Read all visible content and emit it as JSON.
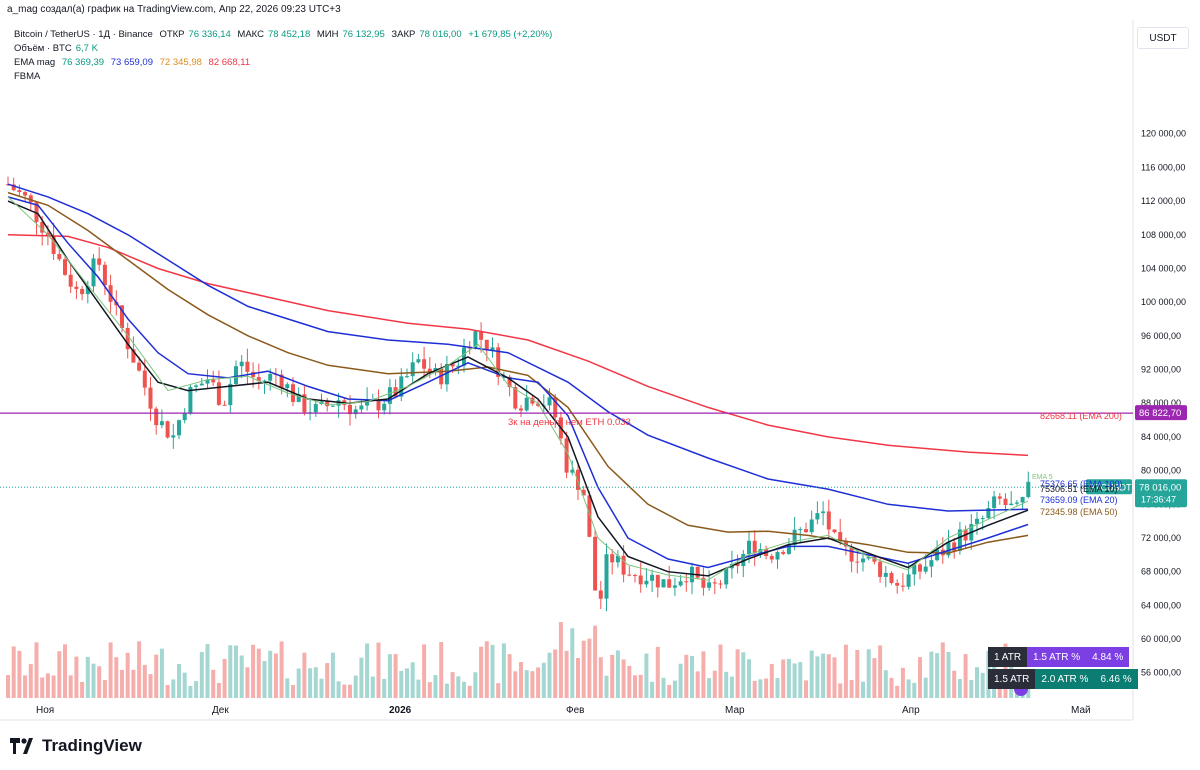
{
  "header": {
    "author_line": "a_mag создал(а) график на TradingView.com, Апр 22, 2026 09:23 UTC+3",
    "symbol": "Bitcoin / TetherUS · 1Д · Binance",
    "open_label": "ОТКР",
    "open": "76 336,14",
    "high_label": "МАКС",
    "high": "78 452,18",
    "low_label": "МИН",
    "low": "76 132,95",
    "close_label": "ЗАКР",
    "close": "78 016,00",
    "change": "+1 679,85 (+2,20%)",
    "volume_label": "Объём · BTC",
    "volume": "6,7 K",
    "ema_label": "EMA mag",
    "ema_vals": [
      "76 369,39",
      "73 659,09",
      "72 345,98",
      "82 668,11"
    ],
    "fbma_label": "FBMA",
    "currency_button": "USDT"
  },
  "colors": {
    "up": "#26a69a",
    "down": "#ef5350",
    "ema10": "#131722",
    "ema20": "#1e2fd6",
    "ema50": "#8b5a1b",
    "ema200": "#f23645",
    "ema5": "#7cc47c",
    "level": "#9c27b0"
  },
  "chart_data": {
    "type": "candlestick",
    "symbol": "BTCUSDT",
    "timeframe": "1D",
    "ylim": [
      53000,
      124000
    ],
    "y_ticks": [
      "120 000,00",
      "116 000,00",
      "112 000,00",
      "108 000,00",
      "104 000,00",
      "100 000,00",
      "96 000,00",
      "92 000,00",
      "88 000,00",
      "84 000,00",
      "80 000,00",
      "76 000,00",
      "72 000,00",
      "68 000,00",
      "64 000,00",
      "60 000,00",
      "56 000,00"
    ],
    "x_labels": [
      "Ноя",
      "Дек",
      "2026",
      "Фев",
      "Мар",
      "Апр",
      "Май"
    ],
    "horizontal_level": 86822.7,
    "horizontal_level_label": "86 822,70",
    "last_price_label": "78 016,00",
    "last_price_badge": "BTCUSDT",
    "countdown": "17:36:47",
    "annotation": "3к на деньги нем ETH 0.033",
    "ema_lines": [
      {
        "name": "EMA 200",
        "label": "82668.11 (EMA 200)",
        "color": "#f23645",
        "points": [
          [
            0,
            108000
          ],
          [
            60,
            107800
          ],
          [
            100,
            106500
          ],
          [
            150,
            104000
          ],
          [
            200,
            102200
          ],
          [
            260,
            100600
          ],
          [
            320,
            99000
          ],
          [
            400,
            97500
          ],
          [
            460,
            96800
          ],
          [
            520,
            95500
          ],
          [
            580,
            93000
          ],
          [
            640,
            90000
          ],
          [
            700,
            87500
          ],
          [
            760,
            85400
          ],
          [
            820,
            84000
          ],
          [
            880,
            83000
          ],
          [
            960,
            82200
          ],
          [
            1020,
            81800
          ]
        ]
      },
      {
        "name": "EMA 100",
        "label": "75376.65 (EMA 100)",
        "color": "#1e2fd6",
        "points": [
          [
            0,
            114000
          ],
          [
            40,
            112500
          ],
          [
            80,
            110500
          ],
          [
            120,
            108000
          ],
          [
            160,
            105000
          ],
          [
            200,
            102000
          ],
          [
            240,
            99500
          ],
          [
            280,
            98000
          ],
          [
            320,
            96500
          ],
          [
            380,
            95500
          ],
          [
            440,
            95000
          ],
          [
            500,
            94000
          ],
          [
            560,
            90500
          ],
          [
            600,
            87000
          ],
          [
            640,
            84200
          ],
          [
            700,
            81500
          ],
          [
            760,
            79000
          ],
          [
            820,
            77800
          ],
          [
            880,
            76000
          ],
          [
            940,
            75200
          ],
          [
            1020,
            75400
          ]
        ]
      },
      {
        "name": "EMA 50",
        "label": "72345.98 (EMA 50)",
        "color": "#8b5a1b",
        "points": [
          [
            0,
            113000
          ],
          [
            40,
            111500
          ],
          [
            80,
            108500
          ],
          [
            120,
            105000
          ],
          [
            160,
            101500
          ],
          [
            200,
            98500
          ],
          [
            240,
            96000
          ],
          [
            280,
            94000
          ],
          [
            320,
            92500
          ],
          [
            380,
            91500
          ],
          [
            440,
            91800
          ],
          [
            480,
            92300
          ],
          [
            520,
            91300
          ],
          [
            560,
            87500
          ],
          [
            600,
            80500
          ],
          [
            640,
            76000
          ],
          [
            680,
            73500
          ],
          [
            720,
            72700
          ],
          [
            760,
            72800
          ],
          [
            800,
            72300
          ],
          [
            860,
            71200
          ],
          [
            900,
            70300
          ],
          [
            940,
            70200
          ],
          [
            980,
            71500
          ],
          [
            1020,
            72300
          ]
        ]
      },
      {
        "name": "EMA 20",
        "label": "73659.09 (EMA 20)",
        "color": "#1e2fd6",
        "points": [
          [
            0,
            112500
          ],
          [
            30,
            111500
          ],
          [
            60,
            107000
          ],
          [
            90,
            103000
          ],
          [
            120,
            98000
          ],
          [
            150,
            94000
          ],
          [
            180,
            91500
          ],
          [
            220,
            91000
          ],
          [
            260,
            91800
          ],
          [
            300,
            90000
          ],
          [
            340,
            88500
          ],
          [
            380,
            88300
          ],
          [
            420,
            90500
          ],
          [
            460,
            92800
          ],
          [
            500,
            91000
          ],
          [
            530,
            90500
          ],
          [
            560,
            86500
          ],
          [
            590,
            78000
          ],
          [
            620,
            72000
          ],
          [
            660,
            69500
          ],
          [
            700,
            68500
          ],
          [
            740,
            69800
          ],
          [
            780,
            71000
          ],
          [
            820,
            71000
          ],
          [
            860,
            70000
          ],
          [
            900,
            69000
          ],
          [
            940,
            70500
          ],
          [
            980,
            72000
          ],
          [
            1020,
            73600
          ]
        ]
      },
      {
        "name": "EMA 10",
        "label": "75306.51 (EMA 10)",
        "color": "#131722",
        "points": [
          [
            0,
            112000
          ],
          [
            30,
            110500
          ],
          [
            60,
            105000
          ],
          [
            90,
            100000
          ],
          [
            120,
            95000
          ],
          [
            150,
            90500
          ],
          [
            180,
            89500
          ],
          [
            220,
            90000
          ],
          [
            260,
            90500
          ],
          [
            300,
            88500
          ],
          [
            340,
            88000
          ],
          [
            380,
            88500
          ],
          [
            420,
            91500
          ],
          [
            460,
            93500
          ],
          [
            500,
            91000
          ],
          [
            530,
            88500
          ],
          [
            560,
            84000
          ],
          [
            590,
            74500
          ],
          [
            620,
            69800
          ],
          [
            660,
            68000
          ],
          [
            700,
            67500
          ],
          [
            740,
            69500
          ],
          [
            780,
            71200
          ],
          [
            820,
            72000
          ],
          [
            860,
            70200
          ],
          [
            900,
            68500
          ],
          [
            940,
            71500
          ],
          [
            980,
            73500
          ],
          [
            1020,
            75300
          ]
        ]
      },
      {
        "name": "EMA 5",
        "label": "EMA 5",
        "color": "#7cc47c",
        "points": [
          [
            0,
            112500
          ],
          [
            40,
            108000
          ],
          [
            80,
            102000
          ],
          [
            120,
            96000
          ],
          [
            160,
            89500
          ],
          [
            200,
            90800
          ],
          [
            240,
            91200
          ],
          [
            280,
            89200
          ],
          [
            320,
            87800
          ],
          [
            360,
            88200
          ],
          [
            400,
            90000
          ],
          [
            440,
            92500
          ],
          [
            470,
            95000
          ],
          [
            500,
            90200
          ],
          [
            530,
            88000
          ],
          [
            560,
            82000
          ],
          [
            590,
            72000
          ],
          [
            620,
            68800
          ],
          [
            660,
            67600
          ],
          [
            700,
            67000
          ],
          [
            740,
            70000
          ],
          [
            780,
            71500
          ],
          [
            820,
            72300
          ],
          [
            860,
            69800
          ],
          [
            900,
            68200
          ],
          [
            940,
            72000
          ],
          [
            980,
            74200
          ],
          [
            1020,
            76370
          ]
        ]
      }
    ],
    "candles_note": "daily BTCUSDT candles from late October 2025 to April 22 2026; generated in script from the trend path",
    "price_path": [
      [
        0,
        114000
      ],
      [
        20,
        112000
      ],
      [
        40,
        108000
      ],
      [
        55,
        104000
      ],
      [
        70,
        101000
      ],
      [
        90,
        105000
      ],
      [
        110,
        98000
      ],
      [
        130,
        92000
      ],
      [
        150,
        86000
      ],
      [
        165,
        84000
      ],
      [
        180,
        89000
      ],
      [
        200,
        91000
      ],
      [
        215,
        88000
      ],
      [
        230,
        93000
      ],
      [
        250,
        90500
      ],
      [
        270,
        91500
      ],
      [
        290,
        88000
      ],
      [
        310,
        87000
      ],
      [
        330,
        88500
      ],
      [
        350,
        87000
      ],
      [
        370,
        88000
      ],
      [
        390,
        89500
      ],
      [
        410,
        93000
      ],
      [
        430,
        91000
      ],
      [
        450,
        93000
      ],
      [
        465,
        96500
      ],
      [
        480,
        95000
      ],
      [
        495,
        91000
      ],
      [
        510,
        88000
      ],
      [
        525,
        89000
      ],
      [
        545,
        87500
      ],
      [
        560,
        80000
      ],
      [
        575,
        78000
      ],
      [
        590,
        63000
      ],
      [
        600,
        70000
      ],
      [
        620,
        68000
      ],
      [
        640,
        67500
      ],
      [
        660,
        66500
      ],
      [
        680,
        68000
      ],
      [
        700,
        65500
      ],
      [
        720,
        67500
      ],
      [
        745,
        71500
      ],
      [
        760,
        70000
      ],
      [
        780,
        71500
      ],
      [
        800,
        73500
      ],
      [
        815,
        75000
      ],
      [
        830,
        70500
      ],
      [
        850,
        70000
      ],
      [
        870,
        68500
      ],
      [
        890,
        66500
      ],
      [
        910,
        68000
      ],
      [
        930,
        70000
      ],
      [
        950,
        72000
      ],
      [
        970,
        73500
      ],
      [
        990,
        76500
      ],
      [
        1010,
        75000
      ],
      [
        1022,
        78016
      ]
    ],
    "atr_badges": [
      {
        "label": "1 ATR",
        "value": "1.5 ATR %",
        "pct": "4.84 %"
      },
      {
        "label": "1.5 ATR",
        "value": "2.0 ATR %",
        "pct": "6.46 %"
      }
    ]
  },
  "brand": {
    "name": "TradingView"
  }
}
